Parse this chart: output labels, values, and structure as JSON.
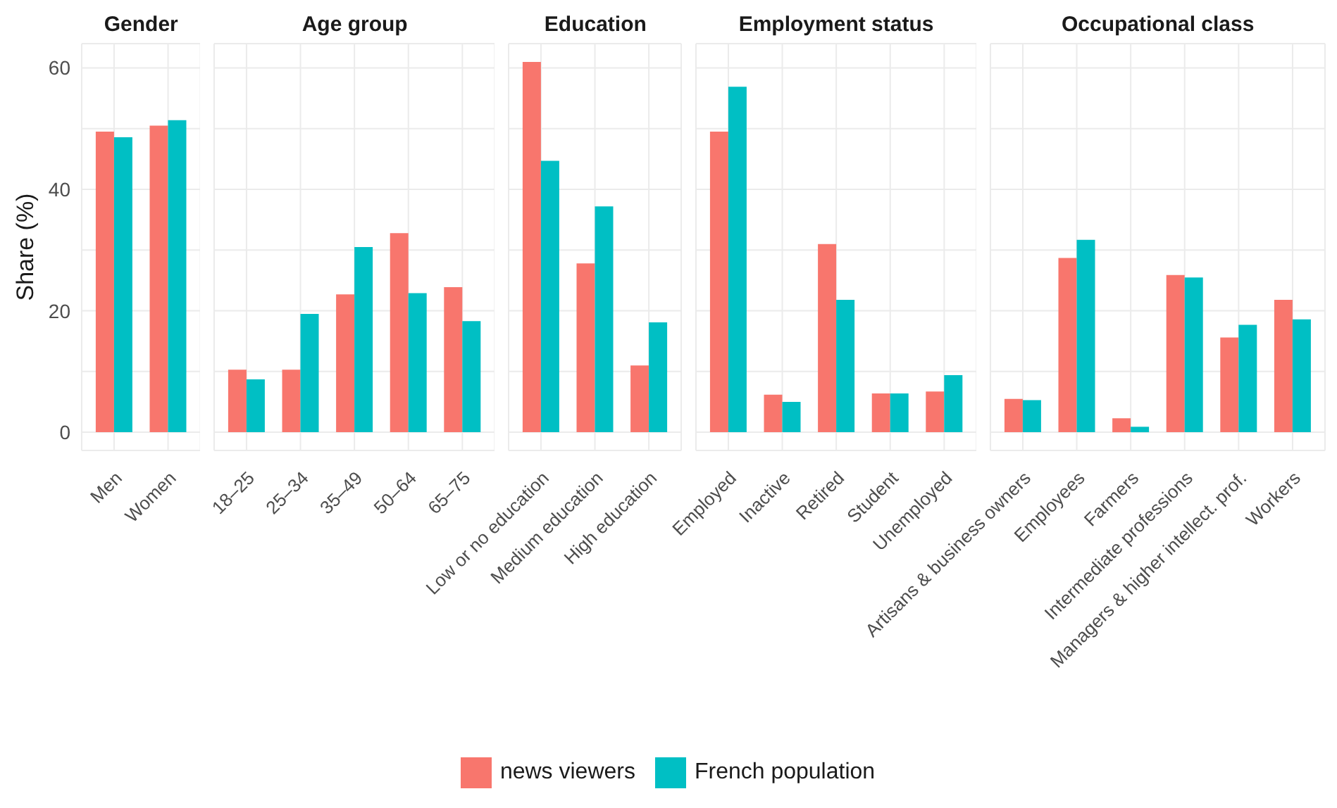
{
  "chart_data": [
    {
      "type": "bar",
      "title": "Gender",
      "ylabel": "Share (%)",
      "categories": [
        "Men",
        "Women"
      ],
      "series": [
        {
          "name": "news viewers",
          "color": "#f8766d",
          "values": [
            49.5,
            50.5
          ]
        },
        {
          "name": "French population",
          "color": "#00bfc4",
          "values": [
            48.6,
            51.4
          ]
        }
      ],
      "ylim": [
        -3,
        64
      ],
      "yticks": [
        0,
        {
          "value": 10,
          "label": null
        },
        20,
        {
          "value": 30,
          "label": null
        },
        40,
        {
          "value": 50,
          "label": null
        },
        60
      ],
      "grid": true,
      "legend": "bottom"
    },
    {
      "type": "bar",
      "title": "Age group",
      "categories": [
        "18–25",
        "25–34",
        "35–49",
        "50–64",
        "65–75"
      ],
      "series": [
        {
          "color": "#f8766d",
          "values": [
            10.3,
            10.3,
            22.7,
            32.8,
            23.9
          ]
        },
        {
          "color": "#00bfc4",
          "values": [
            8.7,
            19.5,
            30.5,
            22.9,
            18.3
          ]
        }
      ],
      "ylim": [
        -3,
        64
      ],
      "yticks": [
        0,
        {
          "value": 10,
          "label": null
        },
        20,
        {
          "value": 30,
          "label": null
        },
        40,
        {
          "value": 50,
          "label": null
        },
        60
      ],
      "grid": true,
      "tick_labels": "x"
    },
    {
      "type": "bar",
      "title": "Education",
      "categories": [
        "Low or no education",
        "Medium education",
        "High education"
      ],
      "series": [
        {
          "color": "#f8766d",
          "values": [
            61.0,
            27.8,
            11.0
          ]
        },
        {
          "color": "#00bfc4",
          "values": [
            44.7,
            37.2,
            18.1
          ]
        }
      ],
      "ylim": [
        -3,
        64
      ],
      "yticks": [
        0,
        {
          "value": 10,
          "label": null
        },
        20,
        {
          "value": 30,
          "label": null
        },
        40,
        {
          "value": 50,
          "label": null
        },
        60
      ],
      "grid": true,
      "tick_labels": "x"
    },
    {
      "type": "bar",
      "title": "Employment status",
      "categories": [
        "Employed",
        "Inactive",
        "Retired",
        "Student",
        "Unemployed"
      ],
      "series": [
        {
          "color": "#f8766d",
          "values": [
            49.5,
            6.2,
            31.0,
            6.4,
            6.7
          ]
        },
        {
          "color": "#00bfc4",
          "values": [
            56.9,
            5.0,
            21.8,
            6.4,
            9.4
          ]
        }
      ],
      "ylim": [
        -3,
        64
      ],
      "yticks": [
        0,
        {
          "value": 10,
          "label": null
        },
        20,
        {
          "value": 30,
          "label": null
        },
        40,
        {
          "value": 50,
          "label": null
        },
        60
      ],
      "grid": true,
      "tick_labels": "x"
    },
    {
      "type": "bar",
      "title": "Occupational class",
      "categories": [
        "Artisans & business owners",
        "Employees",
        "Farmers",
        "Intermediate professions",
        "Managers & higher intellect. prof.",
        "Workers"
      ],
      "series": [
        {
          "color": "#f8766d",
          "values": [
            5.5,
            28.7,
            2.3,
            25.9,
            15.6,
            21.8
          ]
        },
        {
          "color": "#00bfc4",
          "values": [
            5.3,
            31.7,
            0.9,
            25.5,
            17.7,
            18.6
          ]
        }
      ],
      "ylim": [
        -3,
        64
      ],
      "yticks": [
        0,
        {
          "value": 10,
          "label": null
        },
        20,
        {
          "value": 30,
          "label": null
        },
        40,
        {
          "value": 50,
          "label": null
        },
        60
      ],
      "grid": true,
      "tick_labels": "x"
    }
  ]
}
